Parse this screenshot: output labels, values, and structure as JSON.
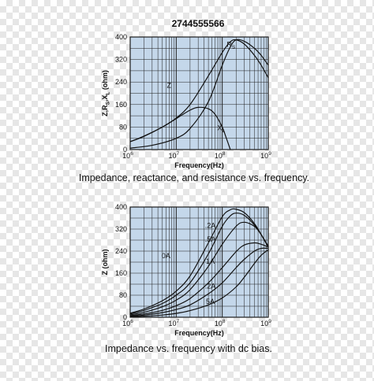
{
  "colors": {
    "plot_bg": "#c4d7ea",
    "grid": "#1c1c1c",
    "curve": "#111111"
  },
  "chart_data": [
    {
      "type": "line",
      "title": "2744555566",
      "xlabel": "Frequency(Hz)",
      "ylabel": "Z,R",
      "ylabel_sub1": "S",
      "ylabel_mid": ",X",
      "ylabel_sub2": "L",
      "ylabel_unit": " (ohm)",
      "x_scale": "log",
      "xlim": [
        1000000,
        1000000000
      ],
      "ylim": [
        0,
        400
      ],
      "x_ticks": [
        {
          "value": 1000000,
          "base": "10",
          "exp": "6"
        },
        {
          "value": 10000000,
          "base": "10",
          "exp": "7"
        },
        {
          "value": 100000000,
          "base": "10",
          "exp": "8"
        },
        {
          "value": 1000000000,
          "base": "10",
          "exp": "9"
        }
      ],
      "y_ticks": [
        {
          "value": 0,
          "label": "0"
        },
        {
          "value": 80,
          "label": "80"
        },
        {
          "value": 160,
          "label": "160"
        },
        {
          "value": 240,
          "label": "240"
        },
        {
          "value": 320,
          "label": "320"
        },
        {
          "value": 400,
          "label": "400"
        }
      ],
      "grid": true,
      "caption": "Impedance, reactance, and resistance vs. frequency.",
      "series": [
        {
          "name": "Z",
          "x": [
            1000000,
            2000000,
            5000000,
            10000000,
            20000000,
            50000000,
            100000000,
            150000000,
            200000000,
            300000000,
            500000000,
            700000000,
            1000000000
          ],
          "y": [
            28,
            48,
            80,
            112,
            160,
            262,
            345,
            383,
            390,
            375,
            335,
            300,
            255
          ],
          "label": "Z",
          "label_at": [
            7000000,
            220
          ]
        },
        {
          "name": "R",
          "x": [
            1000000,
            3000000,
            10000000,
            20000000,
            50000000,
            100000000,
            150000000,
            200000000,
            300000000,
            500000000,
            700000000,
            1000000000
          ],
          "y": [
            5,
            15,
            40,
            75,
            170,
            300,
            365,
            390,
            385,
            360,
            335,
            300
          ],
          "label": "R",
          "label_sub": "S",
          "label_at": [
            155000000,
            365
          ]
        },
        {
          "name": "X",
          "x": [
            1000000,
            2000000,
            5000000,
            10000000,
            20000000,
            30000000,
            50000000,
            70000000,
            100000000,
            120000000,
            150000000
          ],
          "y": [
            28,
            47,
            80,
            110,
            140,
            150,
            145,
            125,
            80,
            45,
            0
          ],
          "label": "X",
          "label_sub": "L",
          "label_at": [
            95000000,
            68
          ]
        }
      ]
    },
    {
      "type": "line",
      "title": "",
      "xlabel": "Frequency(Hz)",
      "ylabel": "Z (ohm)",
      "x_scale": "log",
      "xlim": [
        1000000,
        1000000000
      ],
      "ylim": [
        0,
        400
      ],
      "x_ticks": [
        {
          "value": 1000000,
          "base": "10",
          "exp": "6"
        },
        {
          "value": 10000000,
          "base": "10",
          "exp": "7"
        },
        {
          "value": 100000000,
          "base": "10",
          "exp": "8"
        },
        {
          "value": 1000000000,
          "base": "10",
          "exp": "9"
        }
      ],
      "y_ticks": [
        {
          "value": 0,
          "label": "0"
        },
        {
          "value": 80,
          "label": "80"
        },
        {
          "value": 160,
          "label": "160"
        },
        {
          "value": 240,
          "label": "240"
        },
        {
          "value": 320,
          "label": "320"
        },
        {
          "value": 400,
          "label": "400"
        }
      ],
      "grid": true,
      "caption": "Impedance vs. frequency with dc bias.",
      "series": [
        {
          "name": "0A",
          "x": [
            1000000,
            2000000,
            5000000,
            10000000,
            20000000,
            50000000,
            100000000,
            150000000,
            200000000,
            300000000,
            500000000,
            700000000,
            1000000000
          ],
          "y": [
            15,
            30,
            60,
            95,
            150,
            270,
            365,
            390,
            392,
            380,
            340,
            300,
            255
          ],
          "label": "0A",
          "label_at": [
            6000000,
            215
          ]
        },
        {
          "name": ".2A",
          "x": [
            1000000,
            2000000,
            5000000,
            10000000,
            20000000,
            50000000,
            100000000,
            150000000,
            200000000,
            300000000,
            500000000,
            700000000,
            1000000000
          ],
          "y": [
            12,
            25,
            50,
            80,
            125,
            230,
            330,
            368,
            378,
            370,
            335,
            300,
            255
          ],
          "label": ".2A",
          "label_at": [
            55000000,
            325
          ]
        },
        {
          "name": ".5A",
          "x": [
            1000000,
            2000000,
            5000000,
            10000000,
            20000000,
            50000000,
            100000000,
            200000000,
            300000000,
            500000000,
            700000000,
            1000000000
          ],
          "y": [
            9,
            18,
            38,
            62,
            100,
            185,
            265,
            330,
            345,
            330,
            300,
            258
          ],
          "label": ".5A",
          "label_at": [
            55000000,
            275
          ]
        },
        {
          "name": "1A",
          "x": [
            1000000,
            2000000,
            5000000,
            10000000,
            20000000,
            50000000,
            100000000,
            200000000,
            300000000,
            500000000,
            700000000,
            1000000000
          ],
          "y": [
            6,
            12,
            25,
            42,
            68,
            125,
            180,
            238,
            262,
            270,
            265,
            255
          ],
          "label": "1A",
          "label_at": [
            55000000,
            195
          ]
        },
        {
          "name": ".2A",
          "x": [
            1000000,
            2000000,
            5000000,
            10000000,
            20000000,
            50000000,
            100000000,
            200000000,
            300000000,
            500000000,
            700000000,
            1000000000
          ],
          "y": [
            4,
            8,
            17,
            28,
            45,
            85,
            125,
            180,
            210,
            240,
            250,
            250
          ],
          "label": ".2A",
          "label_at": [
            55000000,
            105
          ]
        },
        {
          "name": "5A",
          "x": [
            1000000,
            2000000,
            5000000,
            10000000,
            20000000,
            50000000,
            100000000,
            200000000,
            300000000,
            500000000,
            700000000,
            1000000000
          ],
          "y": [
            2,
            4,
            8,
            14,
            24,
            45,
            70,
            110,
            145,
            195,
            225,
            245
          ],
          "label": "5A",
          "label_at": [
            55000000,
            48
          ]
        }
      ]
    }
  ]
}
